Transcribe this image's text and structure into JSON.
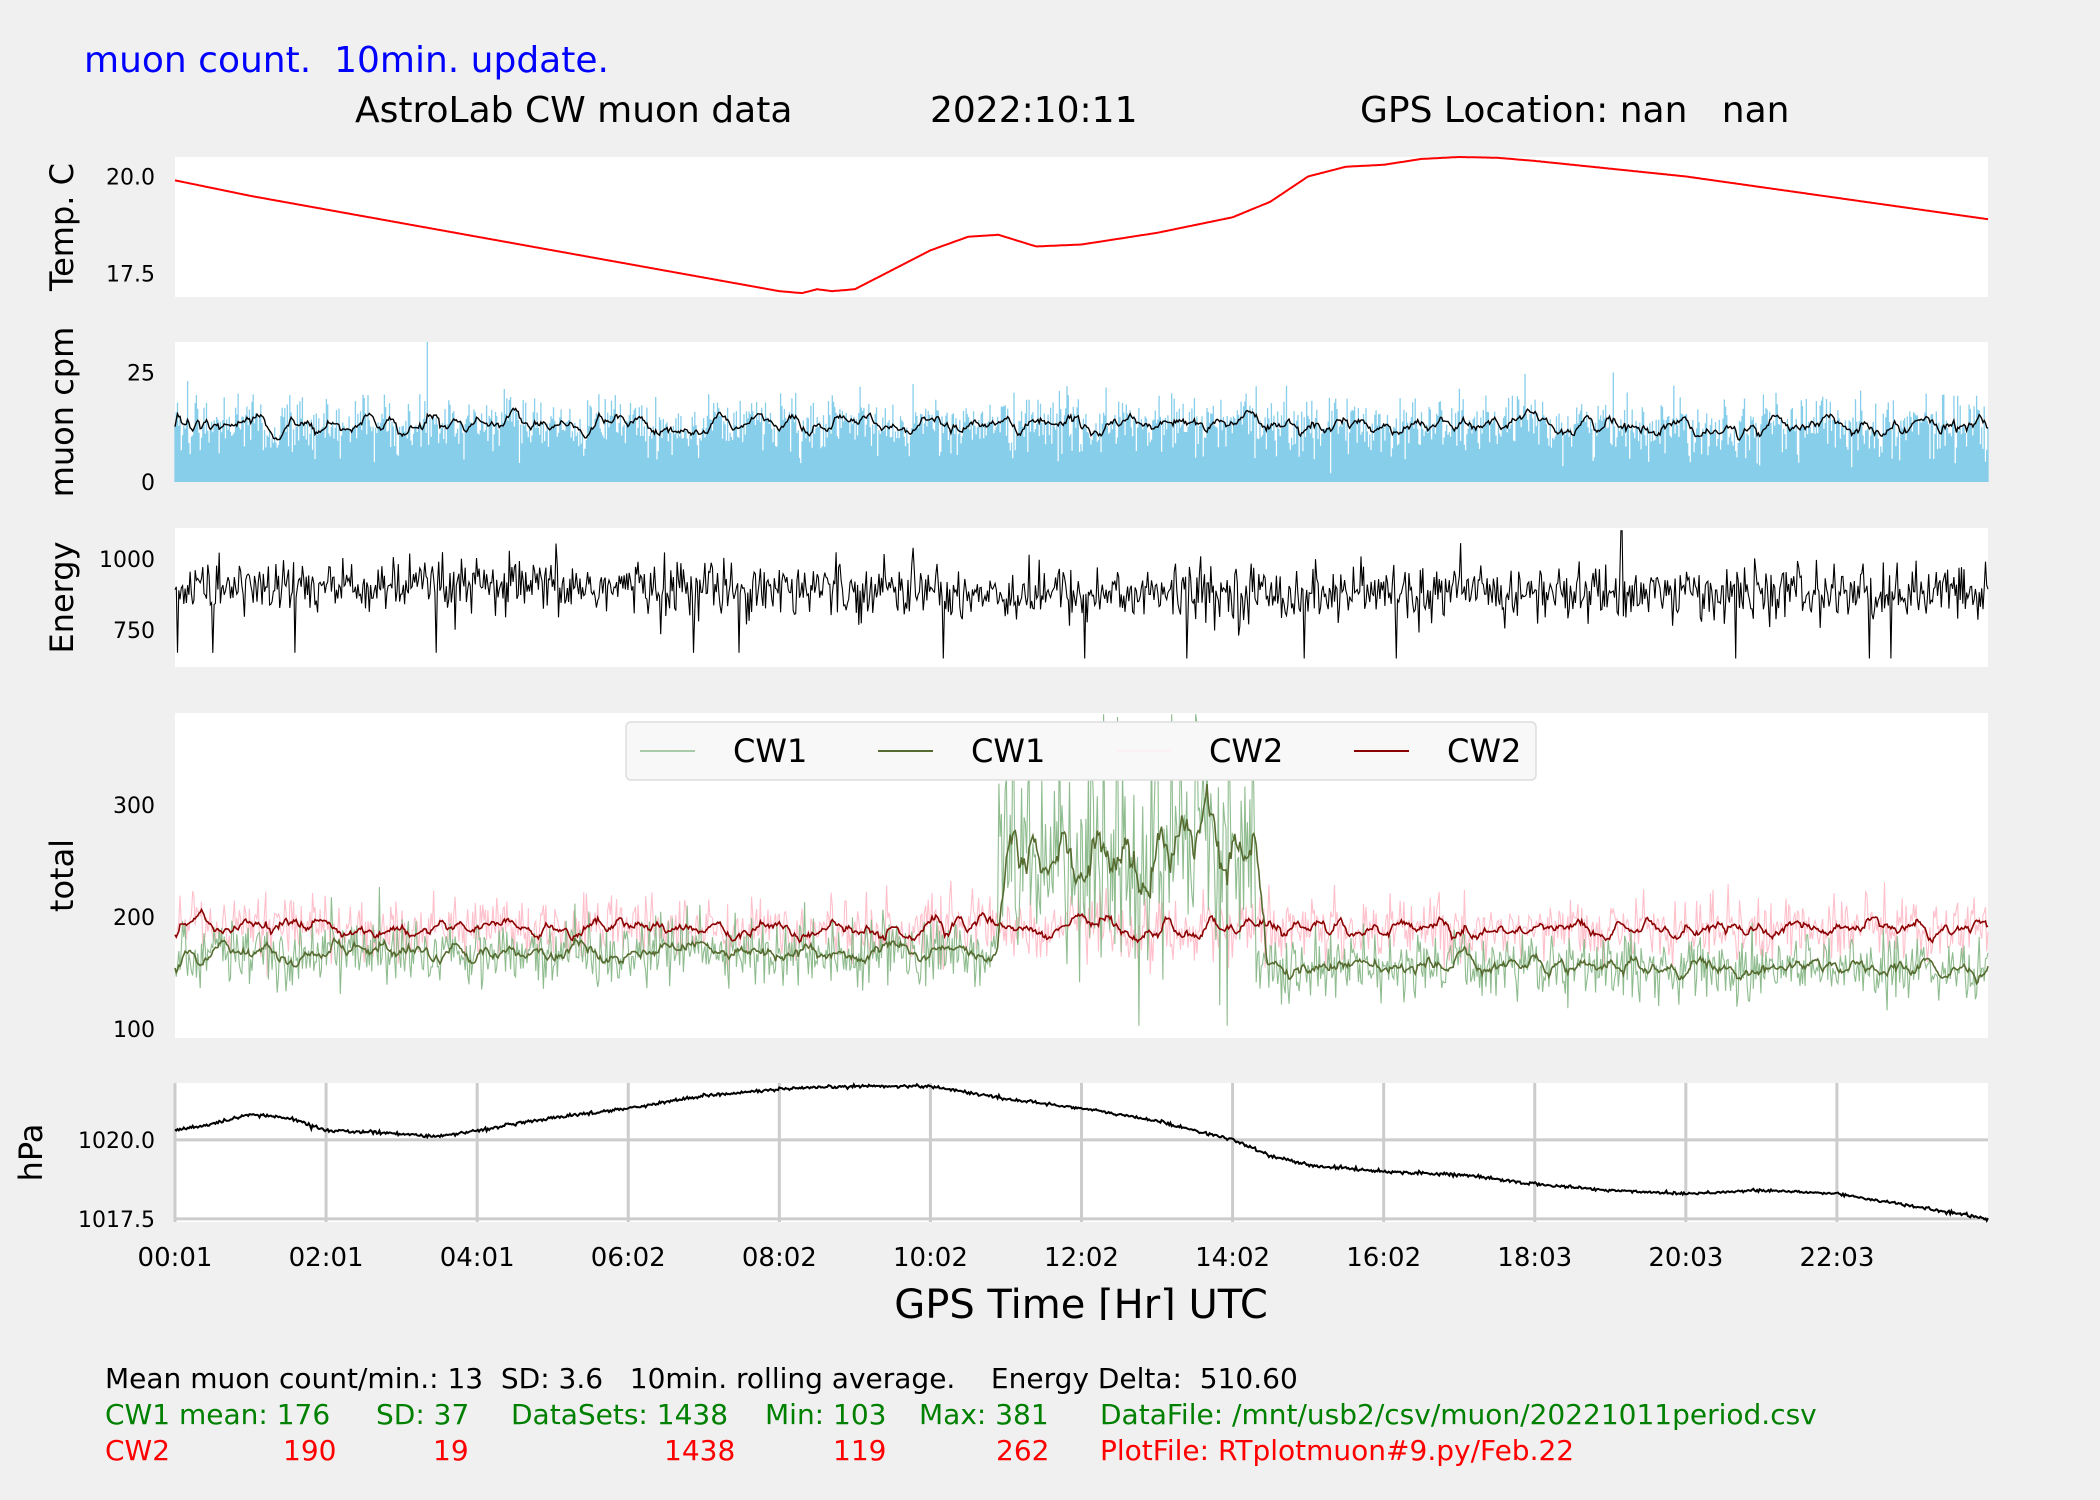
{
  "header": {
    "update_note": "muon count.  10min. update.",
    "title": "AstroLab CW muon data",
    "date": "2022:10:11",
    "gps": "GPS Location: nan   nan"
  },
  "colors": {
    "background": "#f0f0f0",
    "panel": "#ffffff",
    "temp": "#ff0000",
    "muon_bars": "#87ceeb",
    "cw1_raw": "#8fbc8f",
    "cw1_avg": "#556b2f",
    "cw2_raw": "#ffc0cb",
    "cw2_avg": "#8b0000",
    "info_green": "#008000",
    "info_red": "#ff0000",
    "info_blue": "#0000ff"
  },
  "chart_data": {
    "type": "line",
    "xlabel": "GPS Time  [Hr] UTC",
    "x_ticks": [
      "00:01",
      "02:01",
      "04:01",
      "06:02",
      "08:02",
      "10:02",
      "12:02",
      "14:02",
      "16:02",
      "18:03",
      "20:03",
      "22:03"
    ],
    "panels": [
      {
        "id": "temp",
        "ylabel": "Temp. C",
        "ylim": [
          16.9,
          20.5
        ],
        "yticks": [
          "17.5",
          "20.0"
        ],
        "grid": false,
        "series": [
          {
            "color": "red",
            "x_hours": [
              0,
              1,
              2,
              3,
              4,
              5,
              6,
              7,
              8,
              8.3,
              8.5,
              8.7,
              9,
              9.5,
              10,
              10.5,
              10.9,
              11.4,
              12,
              13,
              14,
              14.5,
              15,
              15.5,
              16,
              16.5,
              17,
              17.5,
              18,
              20,
              22,
              24
            ],
            "values": [
              19.9,
              19.5,
              19.15,
              18.8,
              18.45,
              18.1,
              17.75,
              17.4,
              17.05,
              17.0,
              17.1,
              17.05,
              17.1,
              17.6,
              18.1,
              18.45,
              18.5,
              18.2,
              18.25,
              18.55,
              18.95,
              19.35,
              20.0,
              20.25,
              20.3,
              20.45,
              20.5,
              20.48,
              20.4,
              20.0,
              19.45,
              18.9
            ]
          }
        ]
      },
      {
        "id": "muon",
        "ylabel": "muon cpm",
        "ylim": [
          0,
          32
        ],
        "yticks": [
          "0",
          "25"
        ],
        "grid": false,
        "series": [
          {
            "type": "bar",
            "color": "skyblue",
            "mean": 13,
            "sd": 3.6,
            "max": 32
          },
          {
            "type": "line",
            "color": "black",
            "name": "10min. rolling average",
            "mean": 13
          }
        ]
      },
      {
        "id": "energy",
        "ylabel": "Energy",
        "ylim": [
          620,
          1110
        ],
        "yticks": [
          "750",
          "1000"
        ],
        "grid": false,
        "series": [
          {
            "color": "black",
            "baseline": 880,
            "spread": 90,
            "spike_hour": 19.15,
            "spike_value": 1100
          }
        ]
      },
      {
        "id": "total",
        "ylabel": "total",
        "ylim": [
          92,
          382
        ],
        "yticks": [
          "100",
          "200",
          "300"
        ],
        "grid": false,
        "legend": {
          "placement": "top-center",
          "labels": [
            "CW1",
            "CW1",
            "CW2",
            "CW2"
          ]
        },
        "series": [
          {
            "label": "CW1",
            "kind": "raw",
            "color": "darkseagreen",
            "mean": 176,
            "sd": 37,
            "min": 103,
            "max": 381,
            "burst_hours": [
              10.9,
              14.3
            ],
            "burst_mean": 250
          },
          {
            "label": "CW1",
            "kind": "rolling",
            "color": "darkolivegreen"
          },
          {
            "label": "CW2",
            "kind": "raw",
            "color": "pink",
            "mean": 190,
            "sd": 19,
            "min": 119,
            "max": 262
          },
          {
            "label": "CW2",
            "kind": "rolling",
            "color": "darkred"
          }
        ]
      },
      {
        "id": "pressure",
        "ylabel": "hPa",
        "ylim": [
          1017.4,
          1021.8
        ],
        "yticks": [
          "1017.5",
          "1020.0"
        ],
        "grid": true,
        "series": [
          {
            "color": "black",
            "x_hours": [
              0,
              0.5,
              1,
              1.5,
              2,
              3,
              3.5,
              4,
              5,
              6,
              7,
              8,
              9,
              10,
              11,
              12,
              13,
              14,
              14.5,
              15,
              16,
              17,
              18,
              19,
              20,
              21,
              22,
              23,
              24
            ],
            "values": [
              1020.3,
              1020.5,
              1020.8,
              1020.7,
              1020.3,
              1020.2,
              1020.1,
              1020.3,
              1020.7,
              1021.0,
              1021.4,
              1021.6,
              1021.7,
              1021.7,
              1021.3,
              1021.0,
              1020.6,
              1020.0,
              1019.5,
              1019.2,
              1019.0,
              1018.9,
              1018.6,
              1018.4,
              1018.3,
              1018.4,
              1018.3,
              1017.9,
              1017.5
            ]
          }
        ]
      }
    ]
  },
  "summary": {
    "line1": "Mean muon count/min.: 13  SD: 3.6   10min. rolling average.    Energy Delta:  510.60",
    "cw1_row": [
      "CW1 mean: 176",
      "SD: 37",
      "DataSets: 1438",
      "Min: 103",
      "Max: 381",
      "DataFile: /mnt/usb2/csv/muon/20221011period.csv"
    ],
    "cw2_row": [
      "CW2",
      "190",
      "19",
      "1438",
      "119",
      "262",
      "PlotFile: RTplotmuon#9.py/Feb.22"
    ]
  }
}
